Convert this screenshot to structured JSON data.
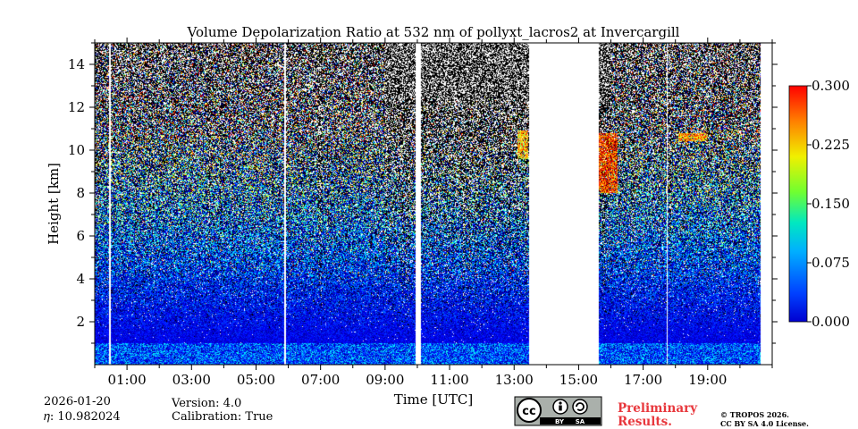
{
  "chart_data": {
    "type": "heatmap",
    "title": "Volume Depolarization Ratio at 532 nm of pollyxt_lacros2 at Invercargill",
    "xlabel": "Time [UTC]",
    "ylabel": "Height [km]",
    "x_unit": "hours UTC",
    "xlim": [
      0.0,
      21.0
    ],
    "ylim": [
      0.0,
      15.0
    ],
    "xticks": [
      {
        "value": 1,
        "label": "01:00"
      },
      {
        "value": 3,
        "label": "03:00"
      },
      {
        "value": 5,
        "label": "05:00"
      },
      {
        "value": 7,
        "label": "07:00"
      },
      {
        "value": 9,
        "label": "09:00"
      },
      {
        "value": 11,
        "label": "11:00"
      },
      {
        "value": 13,
        "label": "13:00"
      },
      {
        "value": 15,
        "label": "15:00"
      },
      {
        "value": 17,
        "label": "17:00"
      },
      {
        "value": 19,
        "label": "19:00"
      }
    ],
    "yticks": [
      {
        "value": 2,
        "label": "2"
      },
      {
        "value": 4,
        "label": "4"
      },
      {
        "value": 6,
        "label": "6"
      },
      {
        "value": 8,
        "label": "8"
      },
      {
        "value": 10,
        "label": "10"
      },
      {
        "value": 12,
        "label": "12"
      },
      {
        "value": 14,
        "label": "14"
      }
    ],
    "data_end_hour": 20.65,
    "gaps_hours": [
      [
        0.45,
        0.5
      ],
      [
        5.88,
        5.92
      ],
      [
        9.95,
        10.1
      ],
      [
        13.47,
        15.62
      ],
      [
        17.72,
        17.76
      ]
    ],
    "features": [
      {
        "name": "boundary layer aerosol",
        "t_start": 0.0,
        "t_end": 20.65,
        "h_bottom": 0.0,
        "h_top": 1.0,
        "value": 0.06
      },
      {
        "name": "cirrus cloud",
        "t_start": 15.62,
        "t_end": 16.2,
        "h_bottom": 8.0,
        "h_top": 10.8,
        "value": 0.25
      },
      {
        "name": "cloud patch",
        "t_start": 13.1,
        "t_end": 13.45,
        "h_bottom": 9.6,
        "h_top": 10.9,
        "value": 0.2
      },
      {
        "name": "cloud patch",
        "t_start": 18.1,
        "t_end": 19.0,
        "h_bottom": 10.4,
        "h_top": 10.8,
        "value": 0.22
      }
    ],
    "colorbar": {
      "min": 0.0,
      "max": 0.3,
      "ticks": [
        "0.000",
        "0.075",
        "0.150",
        "0.225",
        "0.300"
      ],
      "colormap": "jet"
    }
  },
  "info": {
    "date": "2026-01-20",
    "eta": "𝜂: 10.982024",
    "version": "Version: 4.0",
    "calibration": "Calibration: True"
  },
  "license": {
    "badge_cc": "cc",
    "badge_by": "BY",
    "badge_sa": "SA",
    "preliminary_line1": "Preliminary",
    "preliminary_line2": "Results.",
    "copyright_line1": "© TROPOS 2026.",
    "copyright_line2": "CC BY SA 4.0 License."
  }
}
